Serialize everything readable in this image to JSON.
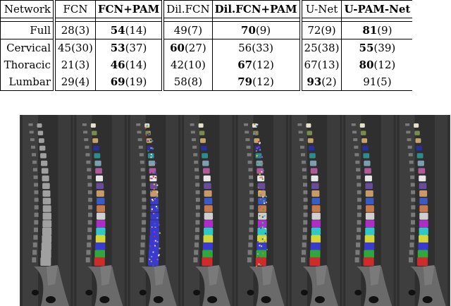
{
  "table": {
    "headers": [
      "Network",
      "FCN",
      "FCN+PAM",
      "Dil.FCN",
      "Dil.FCN+PAM",
      "U-Net",
      "U-PAM-Net"
    ],
    "rows": [
      {
        "label": "Full",
        "cells": [
          {
            "v": "28",
            "s": "(3)"
          },
          {
            "v": "54",
            "s": "(14)"
          },
          {
            "v": "49",
            "s": "(7)"
          },
          {
            "v": "70",
            "s": "(9)"
          },
          {
            "v": "72",
            "s": "(9)"
          },
          {
            "v": "81",
            "s": "(9)"
          }
        ],
        "bold": [
          1,
          3,
          5
        ]
      },
      {
        "label": "Cervical",
        "cells": [
          {
            "v": "45",
            "s": "(30)"
          },
          {
            "v": "53",
            "s": "(37)"
          },
          {
            "v": "60",
            "s": "(27)"
          },
          {
            "v": "56",
            "s": "(33)"
          },
          {
            "v": "25",
            "s": "(38)"
          },
          {
            "v": "55",
            "s": "(39)"
          }
        ],
        "bold": [
          1,
          2,
          5
        ]
      },
      {
        "label": "Thoracic",
        "cells": [
          {
            "v": "21",
            "s": "(3)"
          },
          {
            "v": "46",
            "s": "(14)"
          },
          {
            "v": "42",
            "s": "(10)"
          },
          {
            "v": "67",
            "s": "(12)"
          },
          {
            "v": "67",
            "s": "(13)"
          },
          {
            "v": "80",
            "s": "(12)"
          }
        ],
        "bold": [
          1,
          3,
          5
        ]
      },
      {
        "label": "Lumbar",
        "cells": [
          {
            "v": "29",
            "s": "(4)"
          },
          {
            "v": "69",
            "s": "(19)"
          },
          {
            "v": "58",
            "s": "(8)"
          },
          {
            "v": "79",
            "s": "(12)"
          },
          {
            "v": "93",
            "s": "(2)"
          },
          {
            "v": "91",
            "s": "(5)"
          }
        ],
        "bold": [
          1,
          3,
          4
        ]
      }
    ]
  },
  "figure": {
    "panels": [
      "ct-image",
      "ground-truth",
      "fcn",
      "fcn-pam",
      "dil-fcn",
      "dil-fcn-pam",
      "u-net",
      "u-pam-net"
    ],
    "vertebra_colors": [
      "#e6e0c8",
      "#7a8b4c",
      "#c8a36a",
      "#2b2f9c",
      "#2e8c8c",
      "#7aa0b0",
      "#b05a9c",
      "#e8e8e8",
      "#6a4c9c",
      "#c89a6a",
      "#3a5ac8",
      "#c87a4a",
      "#d0d0d0",
      "#b02cc8",
      "#2ec8c8",
      "#d6d63a",
      "#3a3ad0",
      "#2ea83a",
      "#d02a2a"
    ]
  }
}
